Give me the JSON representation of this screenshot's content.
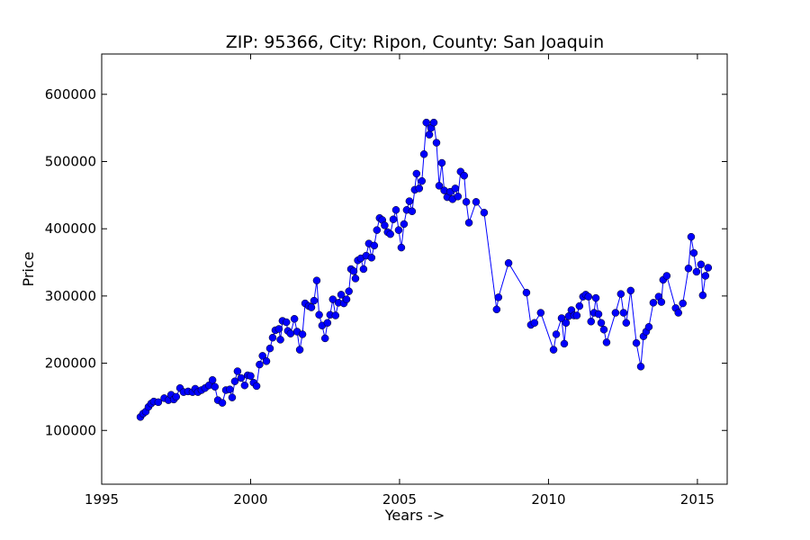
{
  "chart_data": {
    "type": "line",
    "title": "ZIP: 95366, City: Ripon, County: San Joaquin",
    "x_label": "Years ->",
    "y_label": "Price",
    "color": "#0000ff",
    "marker": "circle",
    "grid": false,
    "xlim": [
      1995,
      2016
    ],
    "xticks": [
      1995,
      2000,
      2005,
      2010,
      2015
    ],
    "ylim": [
      20000,
      660000
    ],
    "yticks": [
      100000,
      200000,
      300000,
      400000,
      500000,
      600000
    ],
    "x": [
      1996.3,
      1996.39,
      1996.48,
      1996.57,
      1996.66,
      1996.75,
      1996.9,
      1997.1,
      1997.24,
      1997.33,
      1997.42,
      1997.5,
      1997.63,
      1997.75,
      1997.9,
      1998.05,
      1998.14,
      1998.23,
      1998.35,
      1998.47,
      1998.6,
      1998.72,
      1998.8,
      1998.9,
      1999.05,
      1999.17,
      1999.3,
      1999.38,
      1999.47,
      1999.56,
      1999.68,
      1999.8,
      1999.9,
      2000.0,
      2000.1,
      2000.2,
      2000.3,
      2000.4,
      2000.53,
      2000.65,
      2000.74,
      2000.83,
      2000.95,
      2001.0,
      2001.07,
      2001.2,
      2001.25,
      2001.34,
      2001.47,
      2001.56,
      2001.65,
      2001.74,
      2001.83,
      2001.95,
      2002.04,
      2002.13,
      2002.22,
      2002.3,
      2002.4,
      2002.5,
      2002.58,
      2002.67,
      2002.76,
      2002.85,
      2002.95,
      2003.04,
      2003.13,
      2003.22,
      2003.3,
      2003.37,
      2003.46,
      2003.52,
      2003.6,
      2003.7,
      2003.79,
      2003.88,
      2003.97,
      2004.06,
      2004.15,
      2004.24,
      2004.33,
      2004.42,
      2004.5,
      2004.6,
      2004.69,
      2004.79,
      2004.88,
      2004.97,
      2005.06,
      2005.15,
      2005.24,
      2005.33,
      2005.42,
      2005.51,
      2005.57,
      2005.66,
      2005.75,
      2005.82,
      2005.9,
      2006.0,
      2006.06,
      2006.15,
      2006.24,
      2006.33,
      2006.42,
      2006.5,
      2006.6,
      2006.7,
      2006.78,
      2006.87,
      2006.96,
      2007.05,
      2007.17,
      2007.24,
      2007.33,
      2007.57,
      2007.84,
      2008.26,
      2008.32,
      2008.66,
      2009.26,
      2009.41,
      2009.53,
      2009.74,
      2010.17,
      2010.26,
      2010.44,
      2010.53,
      2010.59,
      2010.68,
      2010.77,
      2010.86,
      2010.95,
      2011.04,
      2011.16,
      2011.25,
      2011.34,
      2011.43,
      2011.53,
      2011.59,
      2011.68,
      2011.77,
      2011.86,
      2011.95,
      2012.25,
      2012.43,
      2012.52,
      2012.61,
      2012.76,
      2012.95,
      2013.1,
      2013.19,
      2013.28,
      2013.37,
      2013.52,
      2013.7,
      2013.79,
      2013.85,
      2013.97,
      2014.27,
      2014.36,
      2014.51,
      2014.7,
      2014.79,
      2014.88,
      2014.97,
      2015.12,
      2015.18,
      2015.27,
      2015.36
    ],
    "values": [
      120000,
      125000,
      128000,
      135000,
      140000,
      143000,
      142000,
      148000,
      145000,
      153000,
      146000,
      150000,
      163000,
      157000,
      158000,
      157000,
      162000,
      157000,
      160000,
      163000,
      167000,
      175000,
      165000,
      145000,
      141000,
      160000,
      161000,
      149000,
      173000,
      188000,
      178000,
      167000,
      182000,
      181000,
      171000,
      166000,
      198000,
      211000,
      203000,
      222000,
      238000,
      249000,
      251000,
      235000,
      263000,
      261000,
      248000,
      244000,
      266000,
      247000,
      220000,
      243000,
      289000,
      285000,
      283000,
      293000,
      323000,
      272000,
      256000,
      237000,
      260000,
      272000,
      295000,
      271000,
      290000,
      302000,
      289000,
      295000,
      307000,
      340000,
      337000,
      326000,
      353000,
      356000,
      340000,
      360000,
      378000,
      357000,
      375000,
      398000,
      416000,
      413000,
      405000,
      395000,
      392000,
      414000,
      428000,
      398000,
      372000,
      407000,
      428000,
      441000,
      426000,
      458000,
      482000,
      460000,
      471000,
      511000,
      558000,
      540000,
      550000,
      558000,
      528000,
      464000,
      498000,
      457000,
      447000,
      455000,
      444000,
      460000,
      448000,
      485000,
      479000,
      440000,
      409000,
      440000,
      424000,
      280000,
      298000,
      349000,
      305000,
      257000,
      260000,
      275000,
      220000,
      243000,
      267000,
      229000,
      260000,
      270000,
      279000,
      271000,
      271000,
      285000,
      299000,
      302000,
      299000,
      262000,
      275000,
      297000,
      273000,
      260000,
      250000,
      231000,
      275000,
      303000,
      275000,
      260000,
      308000,
      230000,
      195000,
      240000,
      247000,
      254000,
      290000,
      299000,
      291000,
      324000,
      330000,
      282000,
      275000,
      289000,
      341000,
      388000,
      364000,
      336000,
      347000,
      301000,
      330000,
      342000
    ]
  }
}
